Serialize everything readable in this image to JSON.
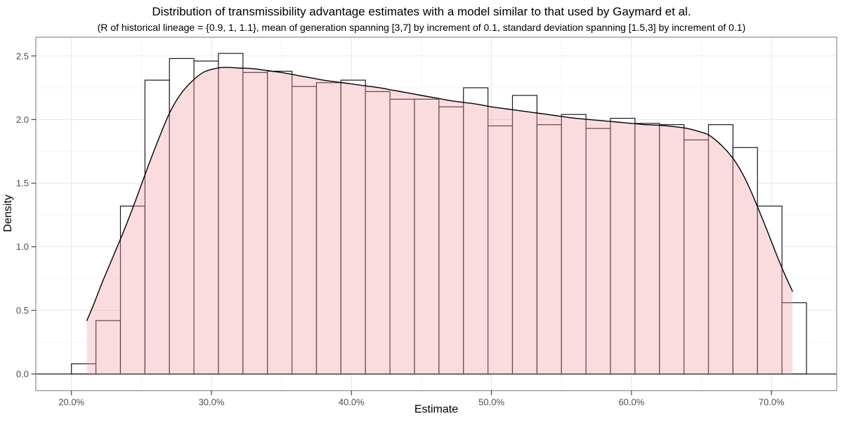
{
  "header": {
    "title": "Distribution of transmissibility advantage estimates with a model similar to that used by Gaymard et al.",
    "subtitle": "(R of historical lineage = {0.9, 1, 1.1}, mean of generation spanning [3,7] by increment of 0.1, standard deviation spanning [1.5,3] by increment of 0.1)"
  },
  "chart_data": {
    "type": "histogram_with_density",
    "title": "Distribution of transmissibility advantage estimates with a model similar to that used by Gaymard et al.",
    "subtitle": "(R of historical lineage = {0.9, 1, 1.1}, mean of generation spanning [3,7] by increment of 0.1, standard deviation spanning [1.5,3] by increment of 0.1)",
    "xlabel": "Estimate",
    "ylabel": "Density",
    "x_ticks": [
      {
        "value": 20,
        "label": "20.0%"
      },
      {
        "value": 30,
        "label": "30.0%"
      },
      {
        "value": 40,
        "label": "40.0%"
      },
      {
        "value": 50,
        "label": "50.0%"
      },
      {
        "value": 60,
        "label": "60.0%"
      },
      {
        "value": 70,
        "label": "70.0%"
      }
    ],
    "x_minor_ticks": [
      25,
      35,
      45,
      55,
      65
    ],
    "y_ticks": [
      {
        "value": 0.0,
        "label": "0.0"
      },
      {
        "value": 0.5,
        "label": "0.5"
      },
      {
        "value": 1.0,
        "label": "1.0"
      },
      {
        "value": 1.5,
        "label": "1.5"
      },
      {
        "value": 2.0,
        "label": "2.0"
      },
      {
        "value": 2.5,
        "label": "2.5"
      }
    ],
    "y_minor_ticks": [
      0.25,
      0.75,
      1.25,
      1.75,
      2.25
    ],
    "xlim": [
      17.46,
      74.66
    ],
    "ylim": [
      -0.13,
      2.65
    ],
    "grid": "major_and_minor",
    "legend_position": "none",
    "histogram": {
      "bin_start_pct": 20.0,
      "bin_width_pct": 1.75,
      "bar_heights": [
        0.08,
        0.42,
        1.32,
        2.31,
        2.48,
        2.46,
        2.52,
        2.37,
        2.38,
        2.26,
        2.29,
        2.31,
        2.22,
        2.16,
        2.16,
        2.1,
        2.25,
        1.95,
        2.19,
        1.96,
        2.04,
        1.93,
        2.01,
        1.97,
        1.96,
        1.84,
        1.96,
        1.78,
        1.32,
        0.56
      ]
    },
    "density_curve": [
      [
        21.1,
        0.42
      ],
      [
        21.6,
        0.55
      ],
      [
        22.2,
        0.72
      ],
      [
        23.0,
        0.93
      ],
      [
        23.8,
        1.14
      ],
      [
        24.6,
        1.37
      ],
      [
        25.4,
        1.61
      ],
      [
        26.2,
        1.84
      ],
      [
        27.0,
        2.05
      ],
      [
        27.8,
        2.2
      ],
      [
        28.6,
        2.3
      ],
      [
        29.4,
        2.37
      ],
      [
        30.2,
        2.4
      ],
      [
        31.0,
        2.41
      ],
      [
        32.0,
        2.405
      ],
      [
        33.0,
        2.4
      ],
      [
        34.0,
        2.385
      ],
      [
        35.0,
        2.37
      ],
      [
        36.0,
        2.35
      ],
      [
        37.0,
        2.33
      ],
      [
        38.0,
        2.31
      ],
      [
        39.0,
        2.295
      ],
      [
        40.0,
        2.28
      ],
      [
        41.0,
        2.265
      ],
      [
        42.0,
        2.25
      ],
      [
        43.0,
        2.23
      ],
      [
        44.0,
        2.21
      ],
      [
        45.0,
        2.19
      ],
      [
        46.0,
        2.17
      ],
      [
        47.0,
        2.15
      ],
      [
        48.0,
        2.135
      ],
      [
        49.0,
        2.12
      ],
      [
        50.0,
        2.1
      ],
      [
        51.0,
        2.085
      ],
      [
        52.0,
        2.07
      ],
      [
        53.0,
        2.055
      ],
      [
        54.0,
        2.04
      ],
      [
        55.0,
        2.025
      ],
      [
        56.0,
        2.01
      ],
      [
        57.0,
        2.0
      ],
      [
        58.0,
        1.99
      ],
      [
        59.0,
        1.98
      ],
      [
        60.0,
        1.97
      ],
      [
        61.0,
        1.96
      ],
      [
        62.0,
        1.955
      ],
      [
        63.0,
        1.945
      ],
      [
        64.0,
        1.93
      ],
      [
        65.0,
        1.9
      ],
      [
        65.5,
        1.88
      ],
      [
        66.0,
        1.84
      ],
      [
        66.5,
        1.79
      ],
      [
        67.0,
        1.73
      ],
      [
        67.5,
        1.655
      ],
      [
        68.0,
        1.56
      ],
      [
        68.5,
        1.445
      ],
      [
        69.0,
        1.315
      ],
      [
        69.5,
        1.18
      ],
      [
        70.0,
        1.04
      ],
      [
        70.5,
        0.9
      ],
      [
        71.0,
        0.77
      ],
      [
        71.5,
        0.65
      ]
    ],
    "colors": {
      "density_fill": "#F49BA1",
      "density_fill_opacity": 0.35,
      "density_curve": "#000000",
      "bar_fill": "#FFFFFF",
      "bar_stroke": "#1A1A1A",
      "zero_line": "#1A1A1A",
      "grid_major": "#E8E8E8",
      "grid_minor": "#F4F4F4",
      "panel_border": "#8C8C8C",
      "tick_mark": "#333333",
      "axis_text": "#4D4D4D",
      "title_text": "#000000"
    }
  }
}
